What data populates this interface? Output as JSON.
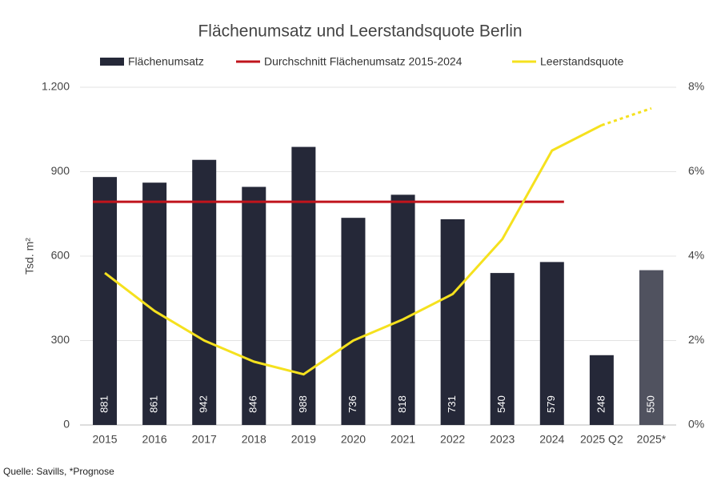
{
  "chart_data": {
    "type": "bar_line",
    "title": "Flächenumsatz  und Leerstandsquote Berlin",
    "ylabel": "Tsd. m²",
    "source": "Quelle: Savills, *Prognose",
    "categories": [
      "2015",
      "2016",
      "2017",
      "2018",
      "2019",
      "2020",
      "2021",
      "2022",
      "2023",
      "2024",
      "2025 Q2",
      "2025*"
    ],
    "series": [
      {
        "name": "Flächenumsatz",
        "kind": "bar",
        "color": "#252838",
        "colors": [
          "#252838",
          "#252838",
          "#252838",
          "#252838",
          "#252838",
          "#252838",
          "#252838",
          "#252838",
          "#252838",
          "#252838",
          "#252838",
          "#50525f"
        ],
        "values": [
          881,
          861,
          942,
          846,
          988,
          736,
          818,
          731,
          540,
          579,
          248,
          550
        ]
      },
      {
        "name": "Durchschnitt Flächenumsatz 2015-2024",
        "kind": "line",
        "color": "#c0141c",
        "values": [
          793,
          793,
          793,
          793,
          793,
          793,
          793,
          793,
          793,
          793,
          null,
          null
        ]
      },
      {
        "name": "Leerstandsquote",
        "kind": "line",
        "axis": "y2",
        "color": "#f5e11e",
        "dotted_last_segment": true,
        "values": [
          3.6,
          2.7,
          2.0,
          1.5,
          1.2,
          2.0,
          2.5,
          3.1,
          4.4,
          6.5,
          7.1,
          7.5
        ]
      }
    ],
    "ylim": [
      0,
      1200
    ],
    "yticks": [
      0,
      300,
      600,
      900,
      {
        "value": 1200,
        "label": "1.200"
      }
    ],
    "y2lim": [
      0,
      8
    ],
    "y2ticks": [
      {
        "value": 0,
        "label": "0%"
      },
      {
        "value": 2,
        "label": "2%"
      },
      {
        "value": 4,
        "label": "4%"
      },
      {
        "value": 6,
        "label": "6%"
      },
      {
        "value": 8,
        "label": "8%"
      }
    ],
    "grid": true
  }
}
